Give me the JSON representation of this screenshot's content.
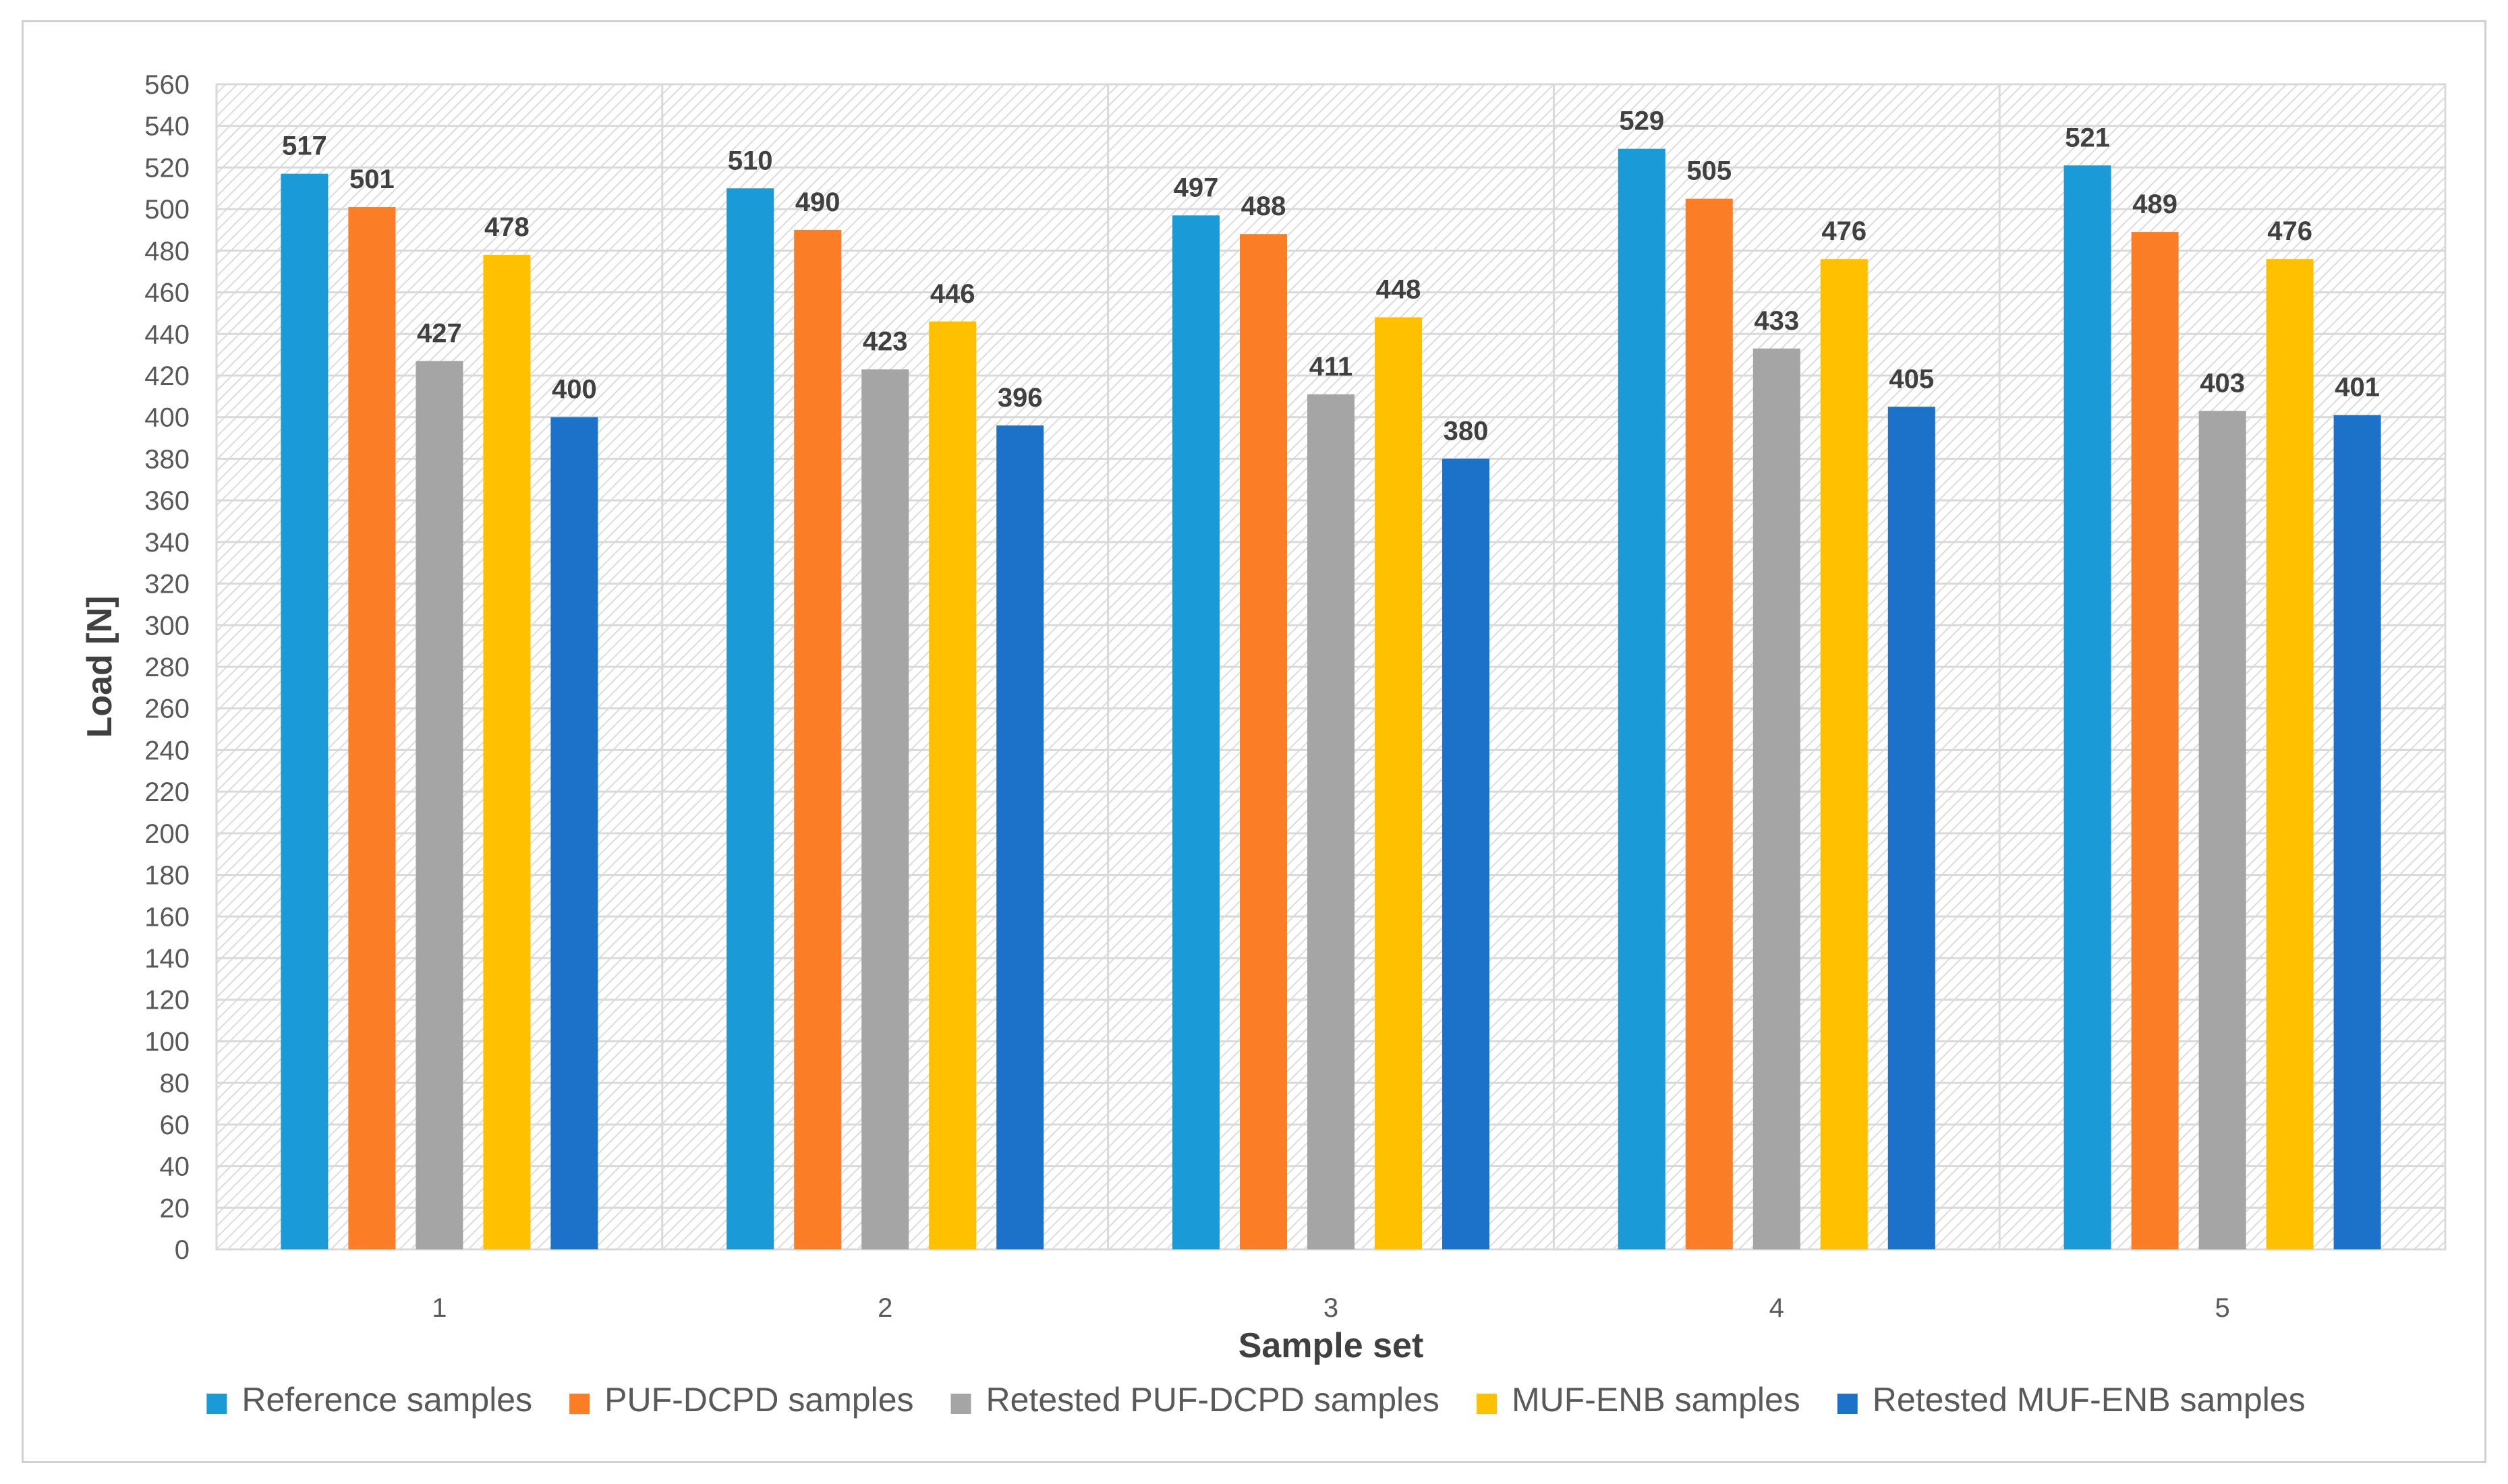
{
  "chart_data": {
    "type": "bar",
    "title": "",
    "xlabel": "Sample set",
    "ylabel": "Load [N]",
    "ylim": [
      0,
      560
    ],
    "ytick_step": 20,
    "grid": true,
    "legend_position": "bottom",
    "categories": [
      "1",
      "2",
      "3",
      "4",
      "5"
    ],
    "series": [
      {
        "name": "Reference samples",
        "color": "#1a9ad6",
        "values": [
          517,
          510,
          497,
          529,
          521
        ]
      },
      {
        "name": "PUF-DCPD samples",
        "color": "#fb7e27",
        "values": [
          501,
          490,
          488,
          505,
          489
        ]
      },
      {
        "name": "Retested PUF-DCPD samples",
        "color": "#a5a5a5",
        "values": [
          427,
          423,
          411,
          433,
          403
        ]
      },
      {
        "name": "MUF-ENB samples",
        "color": "#ffc000",
        "values": [
          478,
          446,
          448,
          476,
          476
        ]
      },
      {
        "name": "Retested MUF-ENB samples",
        "color": "#1b72c8",
        "values": [
          400,
          396,
          380,
          405,
          401
        ]
      }
    ]
  }
}
